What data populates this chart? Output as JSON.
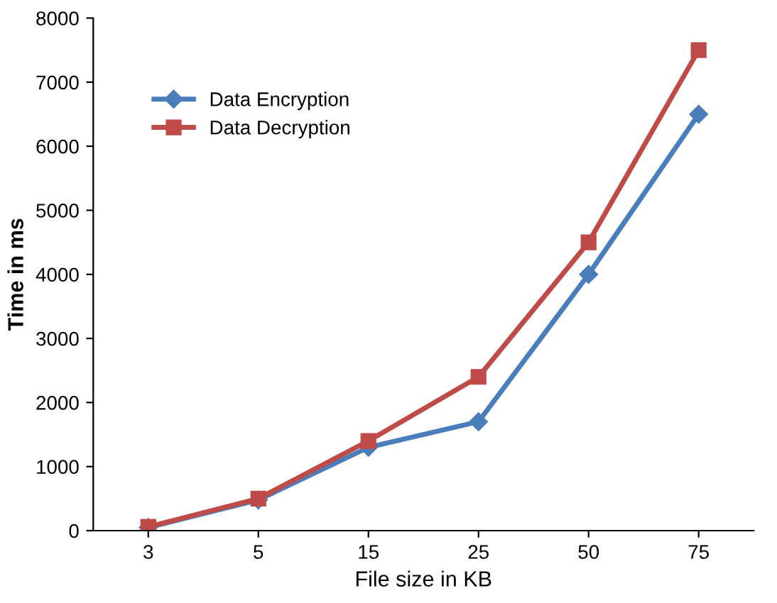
{
  "chart_data": {
    "type": "line",
    "xlabel": "File size in KB",
    "ylabel": "Time in ms",
    "categories": [
      "3",
      "5",
      "15",
      "25",
      "50",
      "75"
    ],
    "series": [
      {
        "name": "Data Encryption",
        "color": "#4a7ebb",
        "marker": "diamond",
        "values": [
          50,
          480,
          1300,
          1700,
          4000,
          6500
        ]
      },
      {
        "name": "Data Decryption",
        "color": "#be4b48",
        "marker": "square",
        "values": [
          60,
          500,
          1400,
          2400,
          4500,
          7500
        ]
      }
    ],
    "ylim": [
      0,
      8000
    ],
    "yticks": [
      0,
      1000,
      2000,
      3000,
      4000,
      5000,
      6000,
      7000,
      8000
    ],
    "grid": false,
    "legend": "top left",
    "line_style": "solid"
  }
}
